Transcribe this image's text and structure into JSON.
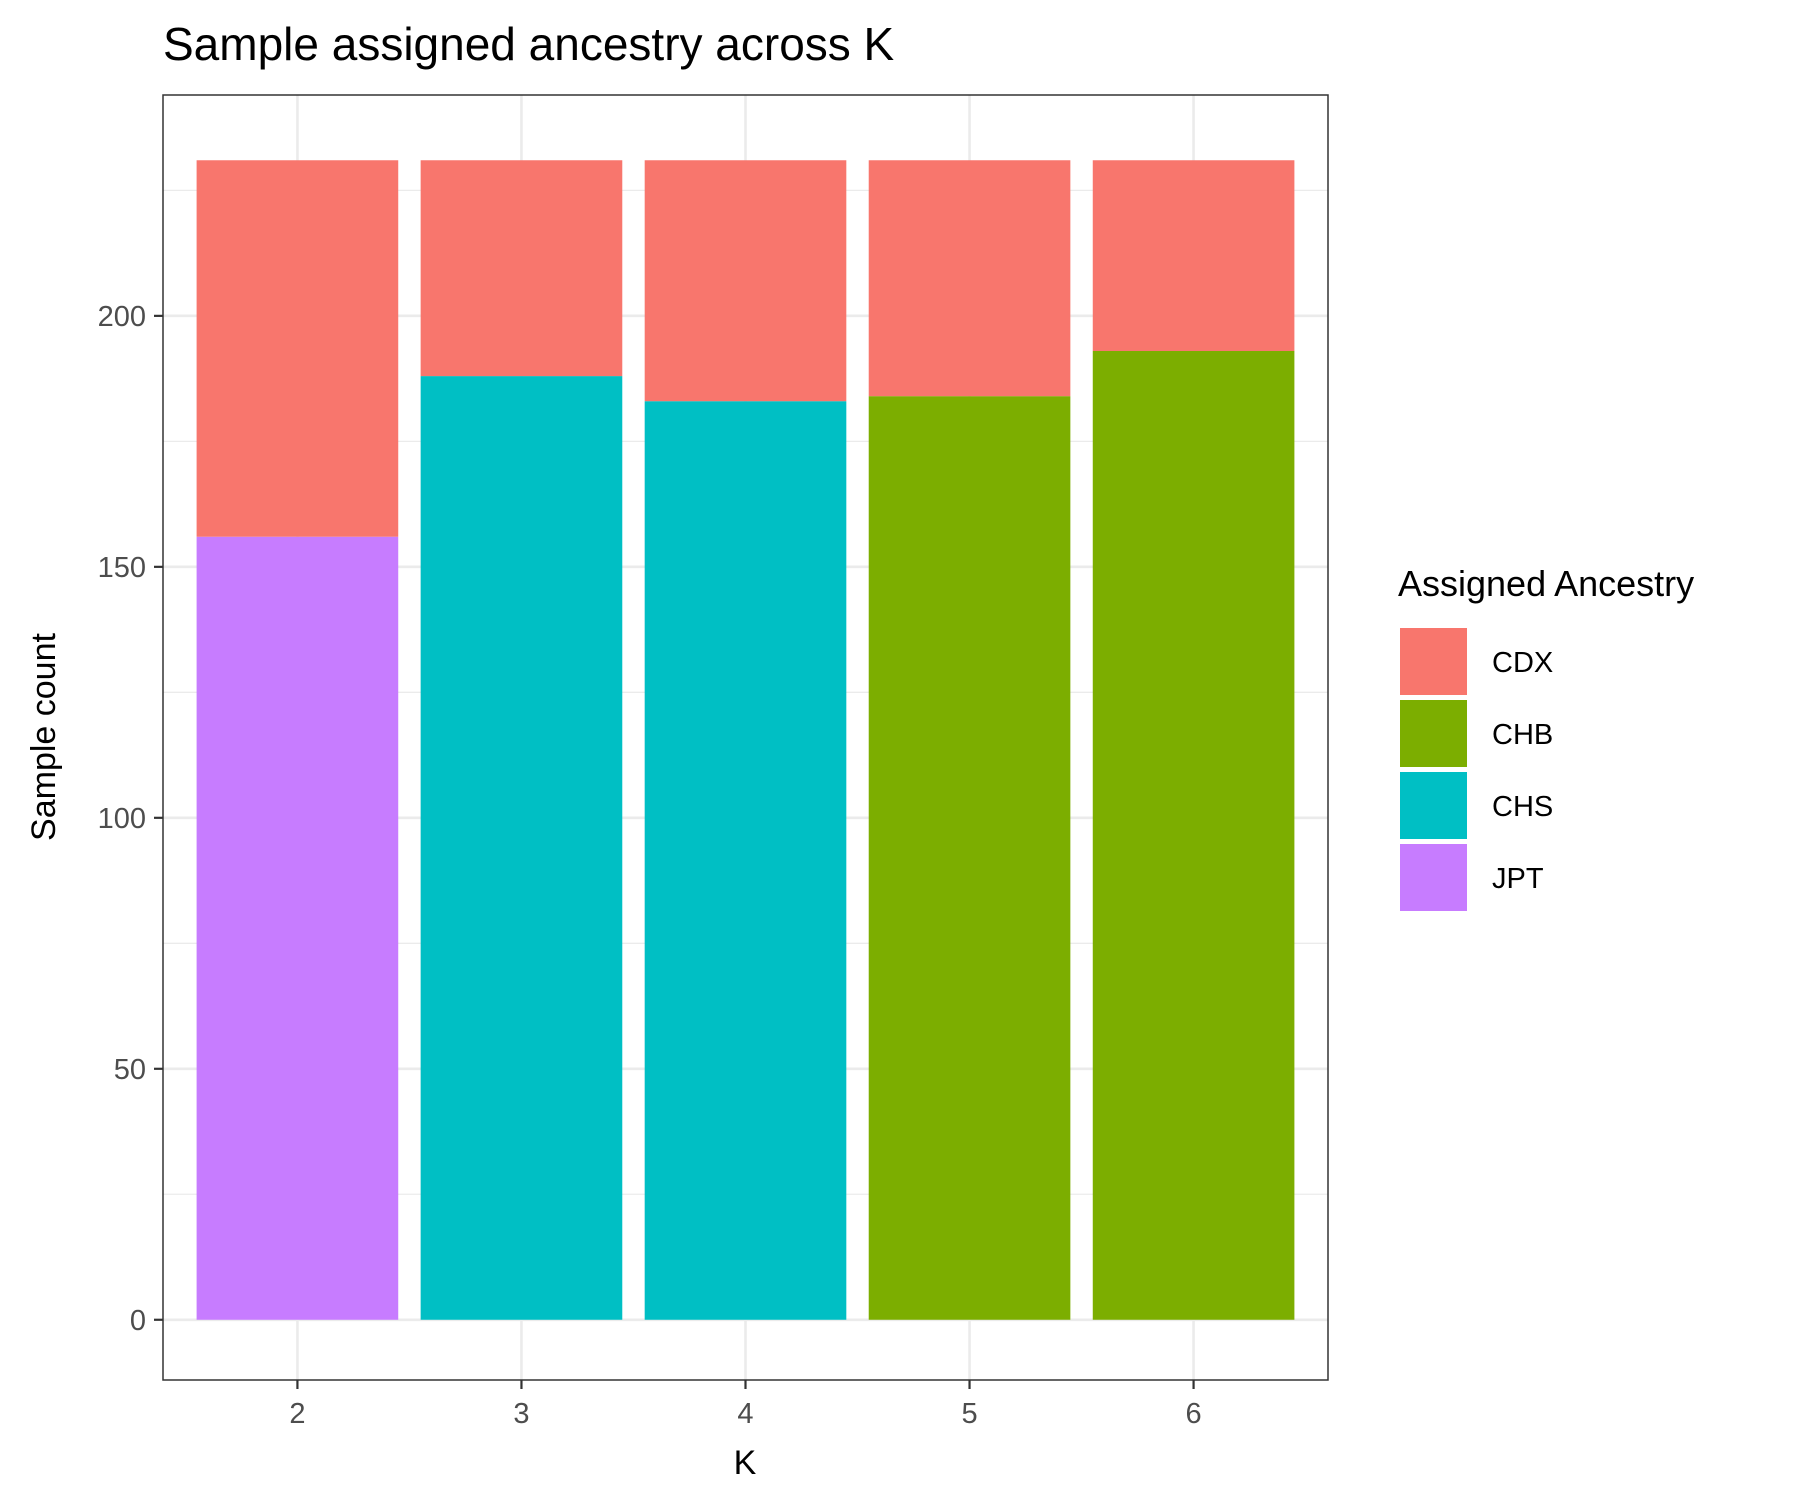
{
  "chart_data": {
    "type": "bar",
    "stacked": true,
    "title": "Sample assigned ancestry across K",
    "xlabel": "K",
    "ylabel": "Sample count",
    "categories": [
      "2",
      "3",
      "4",
      "5",
      "6"
    ],
    "y_ticks": [
      0,
      50,
      100,
      150,
      200
    ],
    "ylim": [
      -12,
      244
    ],
    "grid": true,
    "legend": {
      "title": "Assigned Ancestry",
      "position": "right",
      "entries": [
        "CDX",
        "CHB",
        "CHS",
        "JPT"
      ]
    },
    "colors": {
      "CDX": "#F8766D",
      "CHB": "#7CAE00",
      "CHS": "#00BFC4",
      "JPT": "#C77CFF"
    },
    "series": [
      {
        "name": "JPT",
        "values": [
          156,
          0,
          0,
          0,
          0
        ]
      },
      {
        "name": "CHS",
        "values": [
          0,
          188,
          183,
          0,
          0
        ]
      },
      {
        "name": "CHB",
        "values": [
          0,
          0,
          0,
          184,
          193
        ]
      },
      {
        "name": "CDX",
        "values": [
          75,
          43,
          48,
          47,
          38
        ]
      }
    ]
  }
}
